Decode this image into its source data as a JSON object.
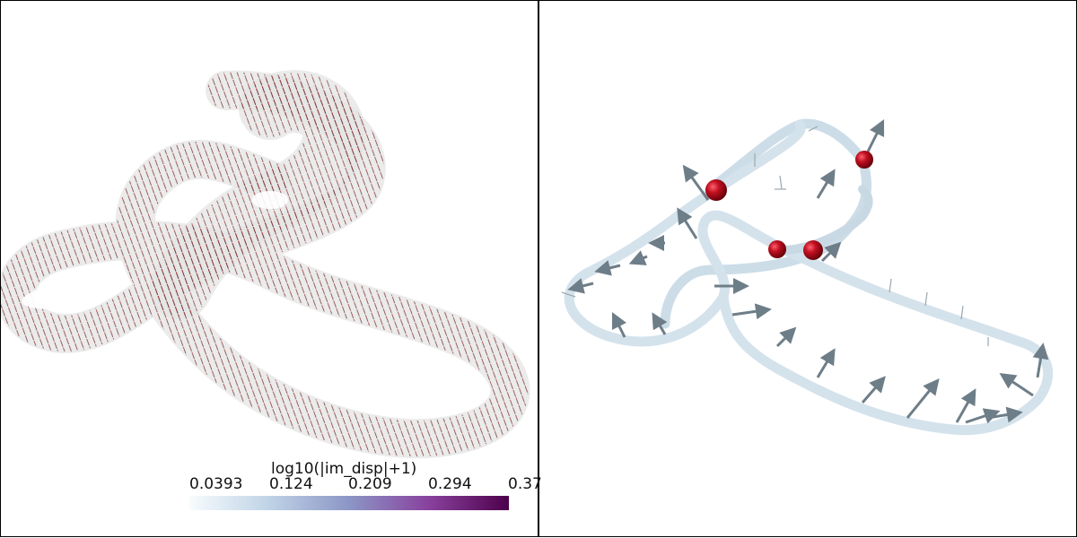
{
  "colorbar": {
    "title": "log10(|im_disp|+1)",
    "ticks": [
      "0.0393",
      "0.124",
      "0.209",
      "0.294",
      "0.37"
    ],
    "colormap": "BuPu",
    "range": [
      0.0393,
      0.37
    ],
    "colors": [
      "#f7fcfd",
      "#bfd3e6",
      "#8c96c6",
      "#88419d",
      "#4d004b"
    ]
  },
  "left_view": {
    "surface_color": "#e6e6e6",
    "glyph_color": "#8b1a1a"
  },
  "right_view": {
    "tube_color": "#d4e2ec",
    "arrow_color": "#6e7e88",
    "sphere_color": "#c01020"
  }
}
